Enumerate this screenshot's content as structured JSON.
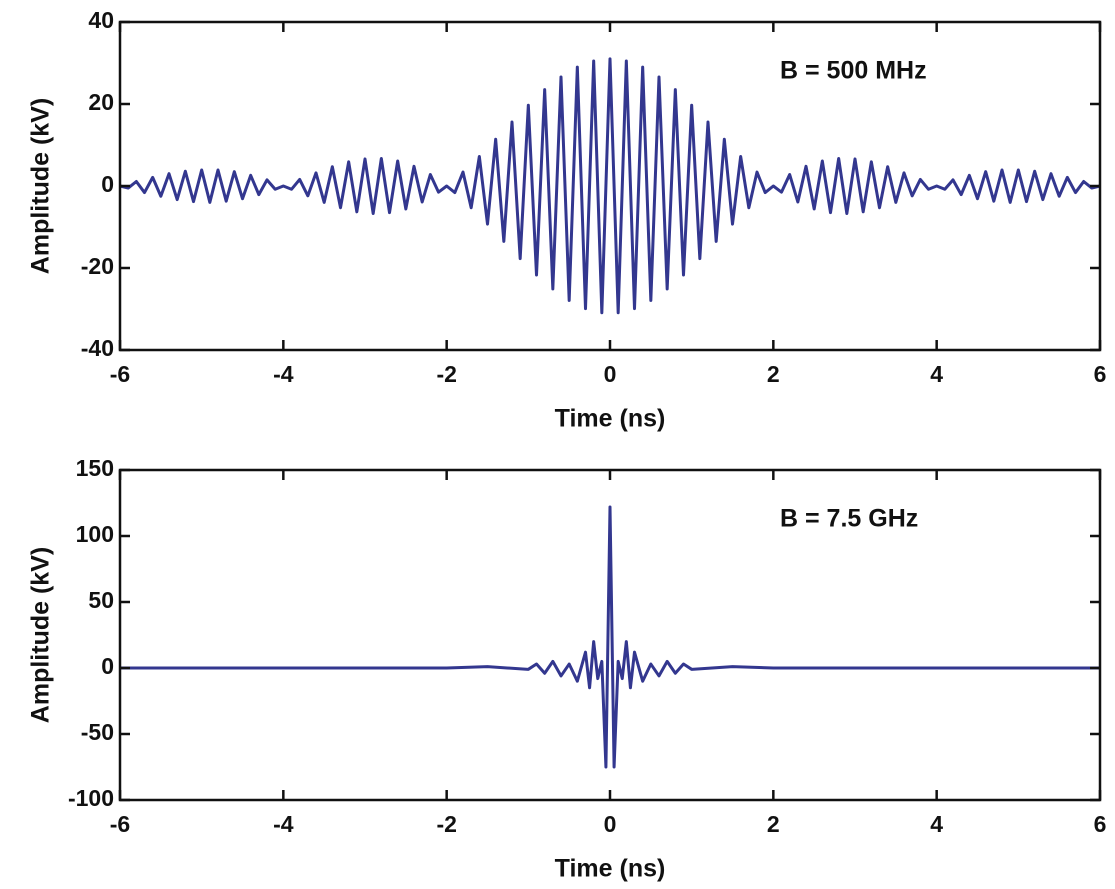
{
  "chart_data": [
    {
      "type": "line",
      "annotation": "B = 500 MHz",
      "xlabel": "Time (ns)",
      "ylabel": "Amplitude (kV)",
      "color": "#33378f",
      "xlim": [
        -6,
        6
      ],
      "xticks": [
        -6,
        -4,
        -2,
        0,
        2,
        4,
        6
      ],
      "ylim": [
        -40,
        40
      ],
      "yticks": [
        -40,
        -20,
        0,
        20,
        40
      ],
      "x": [
        -6,
        -5.9,
        -5.8,
        -5.7,
        -5.6,
        -5.5,
        -5.4,
        -5.3,
        -5.2,
        -5.1,
        -5,
        -4.9,
        -4.8,
        -4.7,
        -4.6,
        -4.5,
        -4.4,
        -4.3,
        -4.2,
        -4.1,
        -4,
        -3.9,
        -3.8,
        -3.7,
        -3.6,
        -3.5,
        -3.4,
        -3.3,
        -3.2,
        -3.1,
        -3,
        -2.9,
        -2.8,
        -2.7,
        -2.6,
        -2.5,
        -2.4,
        -2.3,
        -2.2,
        -2.1,
        -2,
        -1.9,
        -1.8,
        -1.7,
        -1.6,
        -1.5,
        -1.4,
        -1.3,
        -1.2,
        -1.1,
        -1,
        -0.9,
        -0.8,
        -0.7,
        -0.6,
        -0.5,
        -0.4,
        -0.3,
        -0.2,
        -0.1,
        0,
        0.1,
        0.2,
        0.3,
        0.4,
        0.5,
        0.6,
        0.7,
        0.8,
        0.9,
        1,
        1.1,
        1.2,
        1.3,
        1.4,
        1.5,
        1.6,
        1.7,
        1.8,
        1.9,
        2,
        2.1,
        2.2,
        2.3,
        2.4,
        2.5,
        2.6,
        2.7,
        2.8,
        2.9,
        3,
        3.1,
        3.2,
        3.3,
        3.4,
        3.5,
        3.6,
        3.7,
        3.8,
        3.9,
        4,
        4.1,
        4.2,
        4.3,
        4.4,
        4.5,
        4.6,
        4.7,
        4.8,
        4.9,
        5,
        5.1,
        5.2,
        5.3,
        5.4,
        5.5,
        5.6,
        5.7,
        5.8,
        5.9,
        6
      ],
      "values": [
        0,
        -0.5,
        1.1,
        -1.6,
        2.1,
        -2.5,
        3.0,
        -3.3,
        3.6,
        -3.8,
        3.9,
        -4.0,
        3.9,
        -3.7,
        3.5,
        -3.1,
        2.6,
        -2.1,
        1.5,
        -0.8,
        0,
        -0.8,
        1.6,
        -2.4,
        3.2,
        -4.0,
        4.7,
        -5.3,
        5.9,
        -6.3,
        6.6,
        -6.7,
        6.7,
        -6.5,
        6.1,
        -5.6,
        4.8,
        -3.9,
        2.8,
        -1.5,
        0,
        -1.6,
        3.4,
        -5.3,
        7.2,
        -9.3,
        11.4,
        -13.5,
        15.6,
        -17.7,
        19.7,
        -21.7,
        23.5,
        -25.1,
        26.6,
        -27.9,
        29.0,
        -29.9,
        30.5,
        -30.9,
        31,
        -30.9,
        30.5,
        -29.9,
        29.0,
        -27.9,
        26.6,
        -25.1,
        23.5,
        -21.7,
        19.7,
        -17.7,
        15.6,
        -13.5,
        11.4,
        -9.3,
        7.2,
        -5.3,
        3.4,
        -1.6,
        0,
        -1.5,
        2.8,
        -3.9,
        4.8,
        -5.6,
        6.1,
        -6.5,
        6.7,
        -6.7,
        6.6,
        -6.3,
        5.9,
        -5.3,
        4.7,
        -4.0,
        3.2,
        -2.4,
        1.6,
        -0.8,
        0,
        -0.8,
        1.5,
        -2.1,
        2.6,
        -3.1,
        3.5,
        -3.7,
        3.9,
        -4.0,
        3.9,
        -3.8,
        3.6,
        -3.3,
        3.0,
        -2.5,
        2.1,
        -1.6,
        1.1,
        -0.5,
        0
      ]
    },
    {
      "type": "line",
      "annotation": "B = 7.5 GHz",
      "xlabel": "Time (ns)",
      "ylabel": "Amplitude (kV)",
      "color": "#33378f",
      "xlim": [
        -6,
        6
      ],
      "xticks": [
        -6,
        -4,
        -2,
        0,
        2,
        4,
        6
      ],
      "ylim": [
        -100,
        150
      ],
      "yticks": [
        -100,
        -50,
        0,
        50,
        100,
        150
      ],
      "x": [
        -6,
        -5,
        -4,
        -3,
        -2,
        -1.5,
        -1,
        -0.9,
        -0.8,
        -0.7,
        -0.6,
        -0.5,
        -0.4,
        -0.3,
        -0.25,
        -0.2,
        -0.15,
        -0.1,
        -0.05,
        0,
        0.05,
        0.1,
        0.15,
        0.2,
        0.25,
        0.3,
        0.4,
        0.5,
        0.6,
        0.7,
        0.8,
        0.9,
        1,
        1.5,
        2,
        3,
        4,
        5,
        6
      ],
      "values": [
        0,
        0,
        0,
        0,
        0,
        1,
        -1,
        3,
        -4,
        5,
        -6,
        3,
        -10,
        12,
        -15,
        20,
        -8,
        5,
        -75,
        122,
        -75,
        5,
        -8,
        20,
        -15,
        12,
        -10,
        3,
        -6,
        5,
        -4,
        3,
        -1,
        1,
        0,
        0,
        0,
        0,
        0
      ]
    }
  ]
}
